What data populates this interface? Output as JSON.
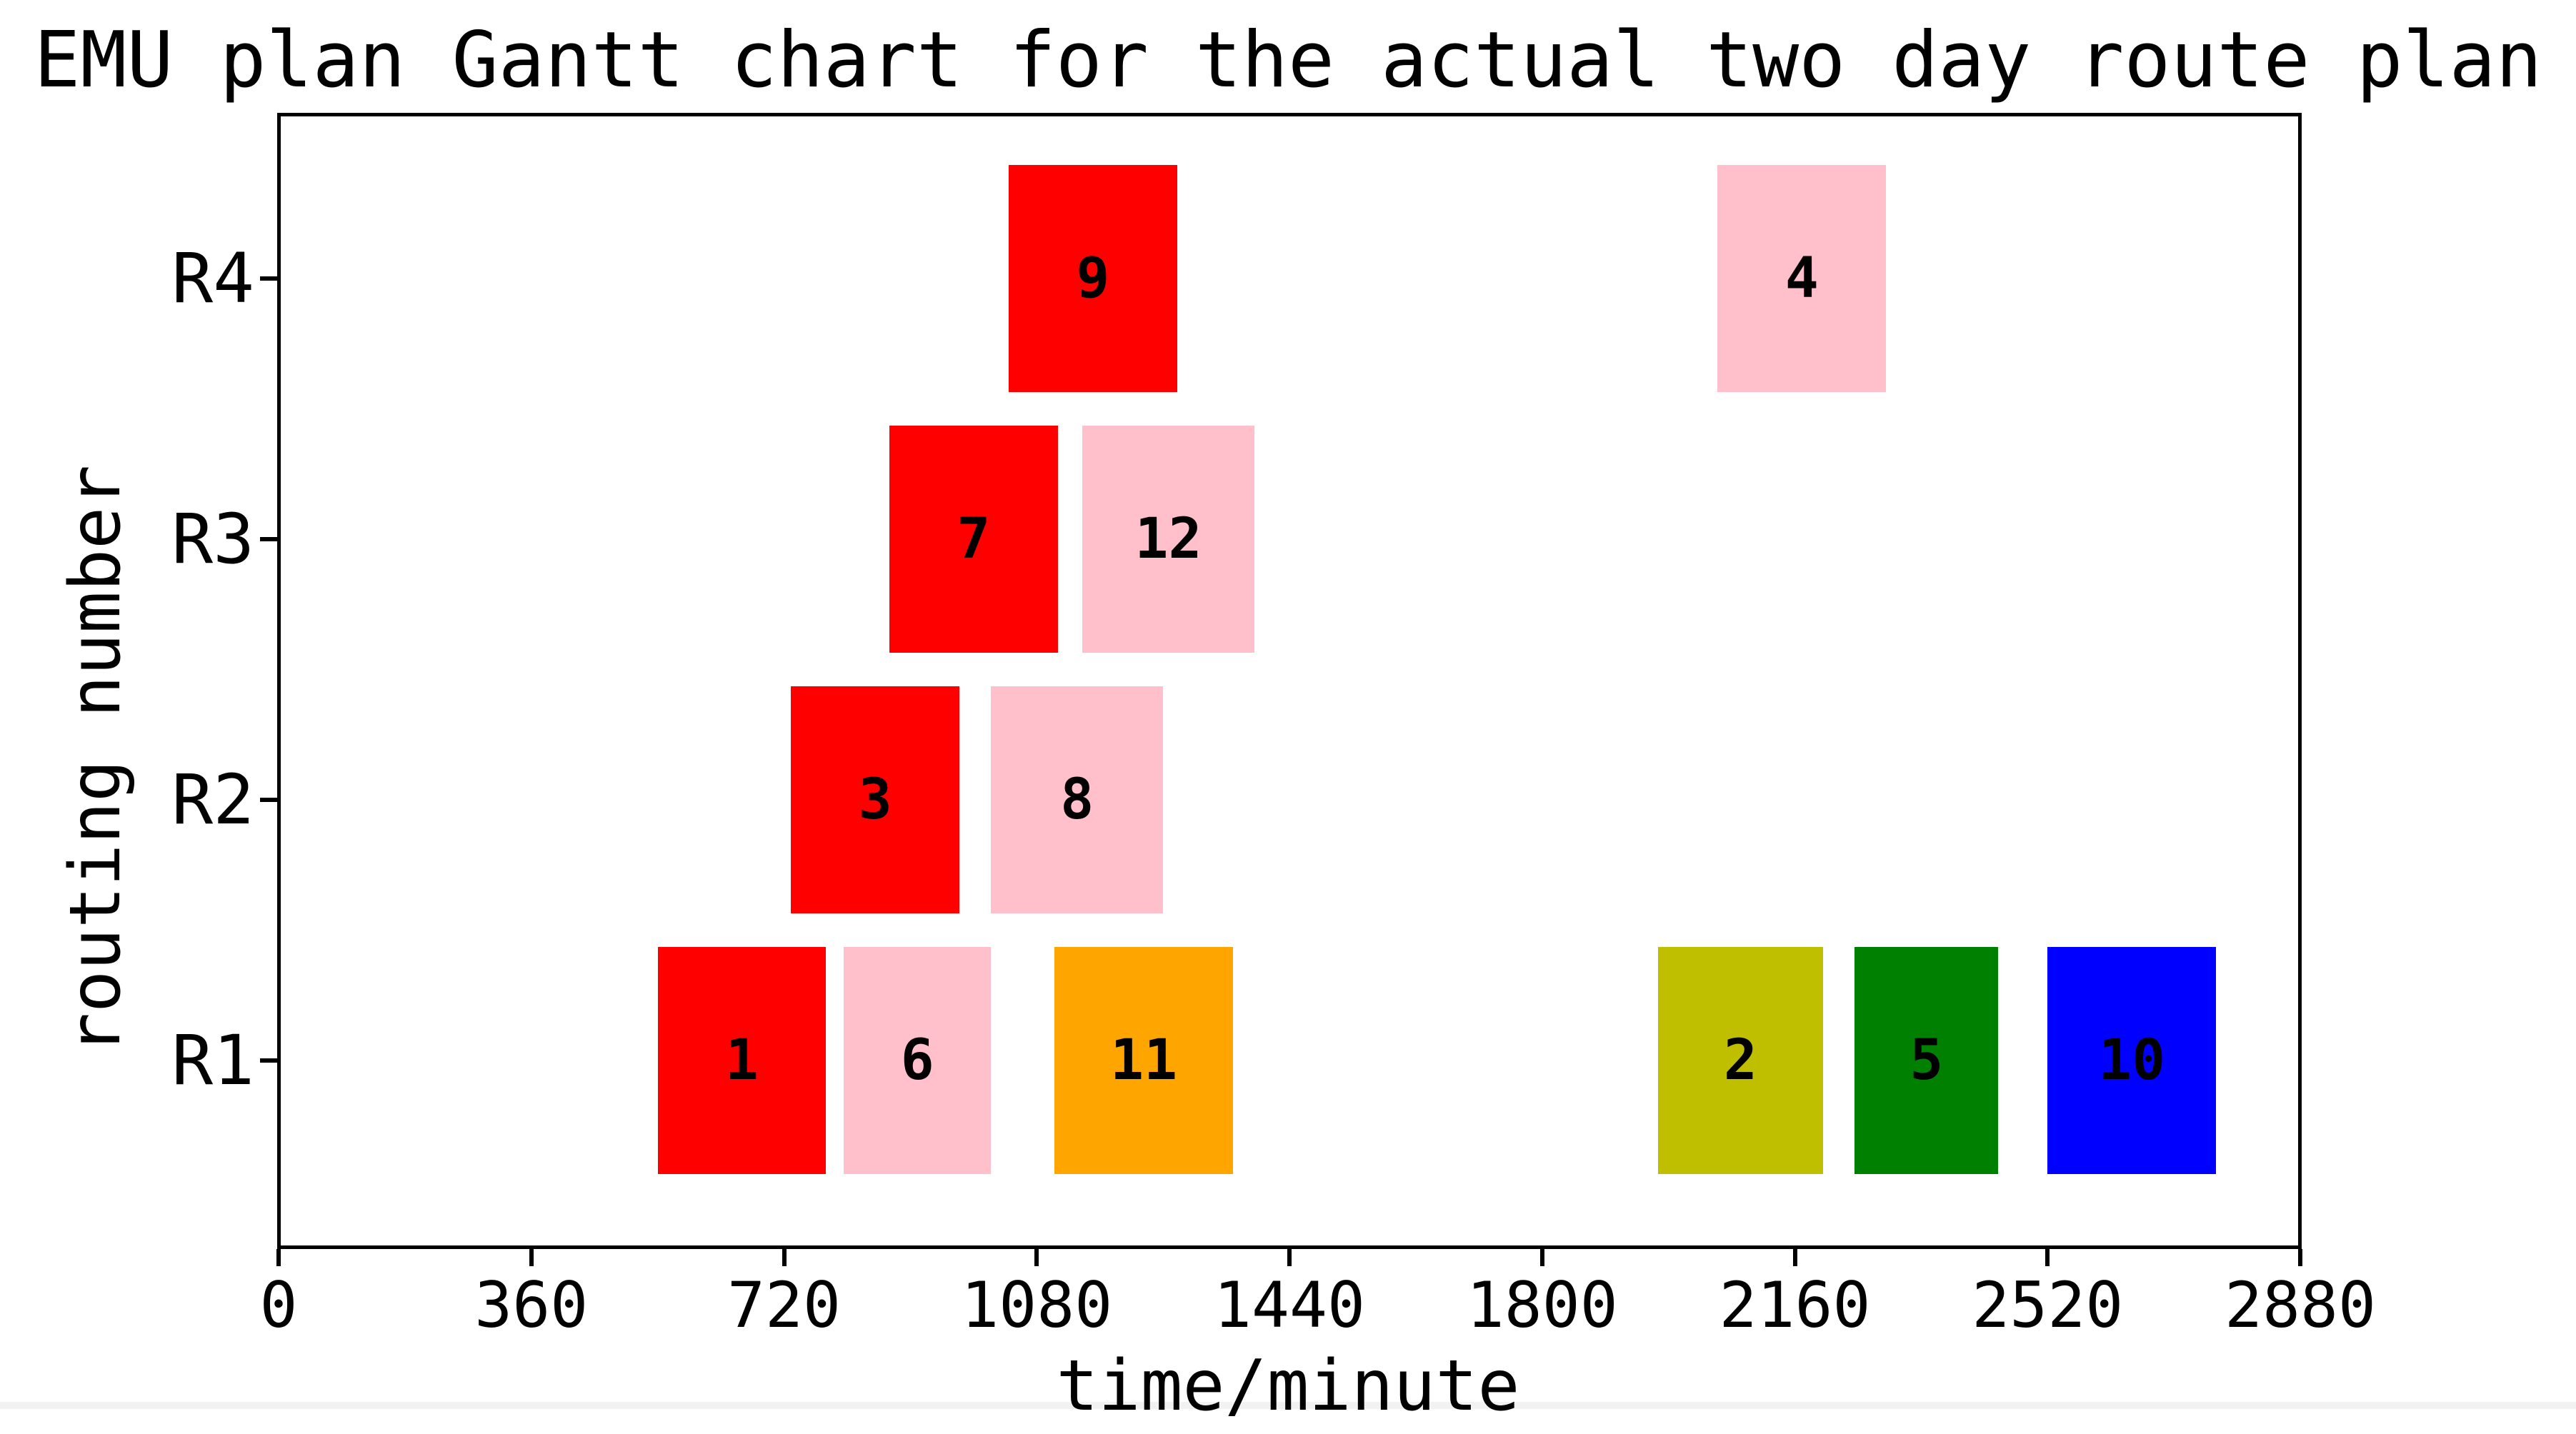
{
  "chart_data": {
    "type": "bar",
    "orientation": "horizontal-gantt",
    "title": "EMU plan Gantt chart for the actual two day route plan",
    "xlabel": "time/minute",
    "ylabel": "routing number",
    "xlim": [
      0,
      2880
    ],
    "xticks": [
      0,
      360,
      720,
      1080,
      1440,
      1800,
      2160,
      2520,
      2880
    ],
    "categories": [
      "R1",
      "R2",
      "R3",
      "R4"
    ],
    "grid": false,
    "legend": false,
    "colors": {
      "red": "#FF0000",
      "pink": "#FFC0CB",
      "orange": "#FFA500",
      "olive": "#BFBF00",
      "green": "#008000",
      "blue": "#0000FF"
    },
    "tasks": [
      {
        "id": "1",
        "row": "R1",
        "start": 540,
        "end": 780,
        "color": "red"
      },
      {
        "id": "6",
        "row": "R1",
        "start": 805,
        "end": 1015,
        "color": "pink"
      },
      {
        "id": "11",
        "row": "R1",
        "start": 1105,
        "end": 1360,
        "color": "orange"
      },
      {
        "id": "2",
        "row": "R1",
        "start": 1965,
        "end": 2200,
        "color": "olive"
      },
      {
        "id": "5",
        "row": "R1",
        "start": 2245,
        "end": 2450,
        "color": "green"
      },
      {
        "id": "10",
        "row": "R1",
        "start": 2520,
        "end": 2760,
        "color": "blue"
      },
      {
        "id": "3",
        "row": "R2",
        "start": 730,
        "end": 970,
        "color": "red"
      },
      {
        "id": "8",
        "row": "R2",
        "start": 1015,
        "end": 1260,
        "color": "pink"
      },
      {
        "id": "7",
        "row": "R3",
        "start": 870,
        "end": 1110,
        "color": "red"
      },
      {
        "id": "12",
        "row": "R3",
        "start": 1145,
        "end": 1390,
        "color": "pink"
      },
      {
        "id": "9",
        "row": "R4",
        "start": 1040,
        "end": 1280,
        "color": "red"
      },
      {
        "id": "4",
        "row": "R4",
        "start": 2050,
        "end": 2290,
        "color": "pink"
      }
    ]
  }
}
